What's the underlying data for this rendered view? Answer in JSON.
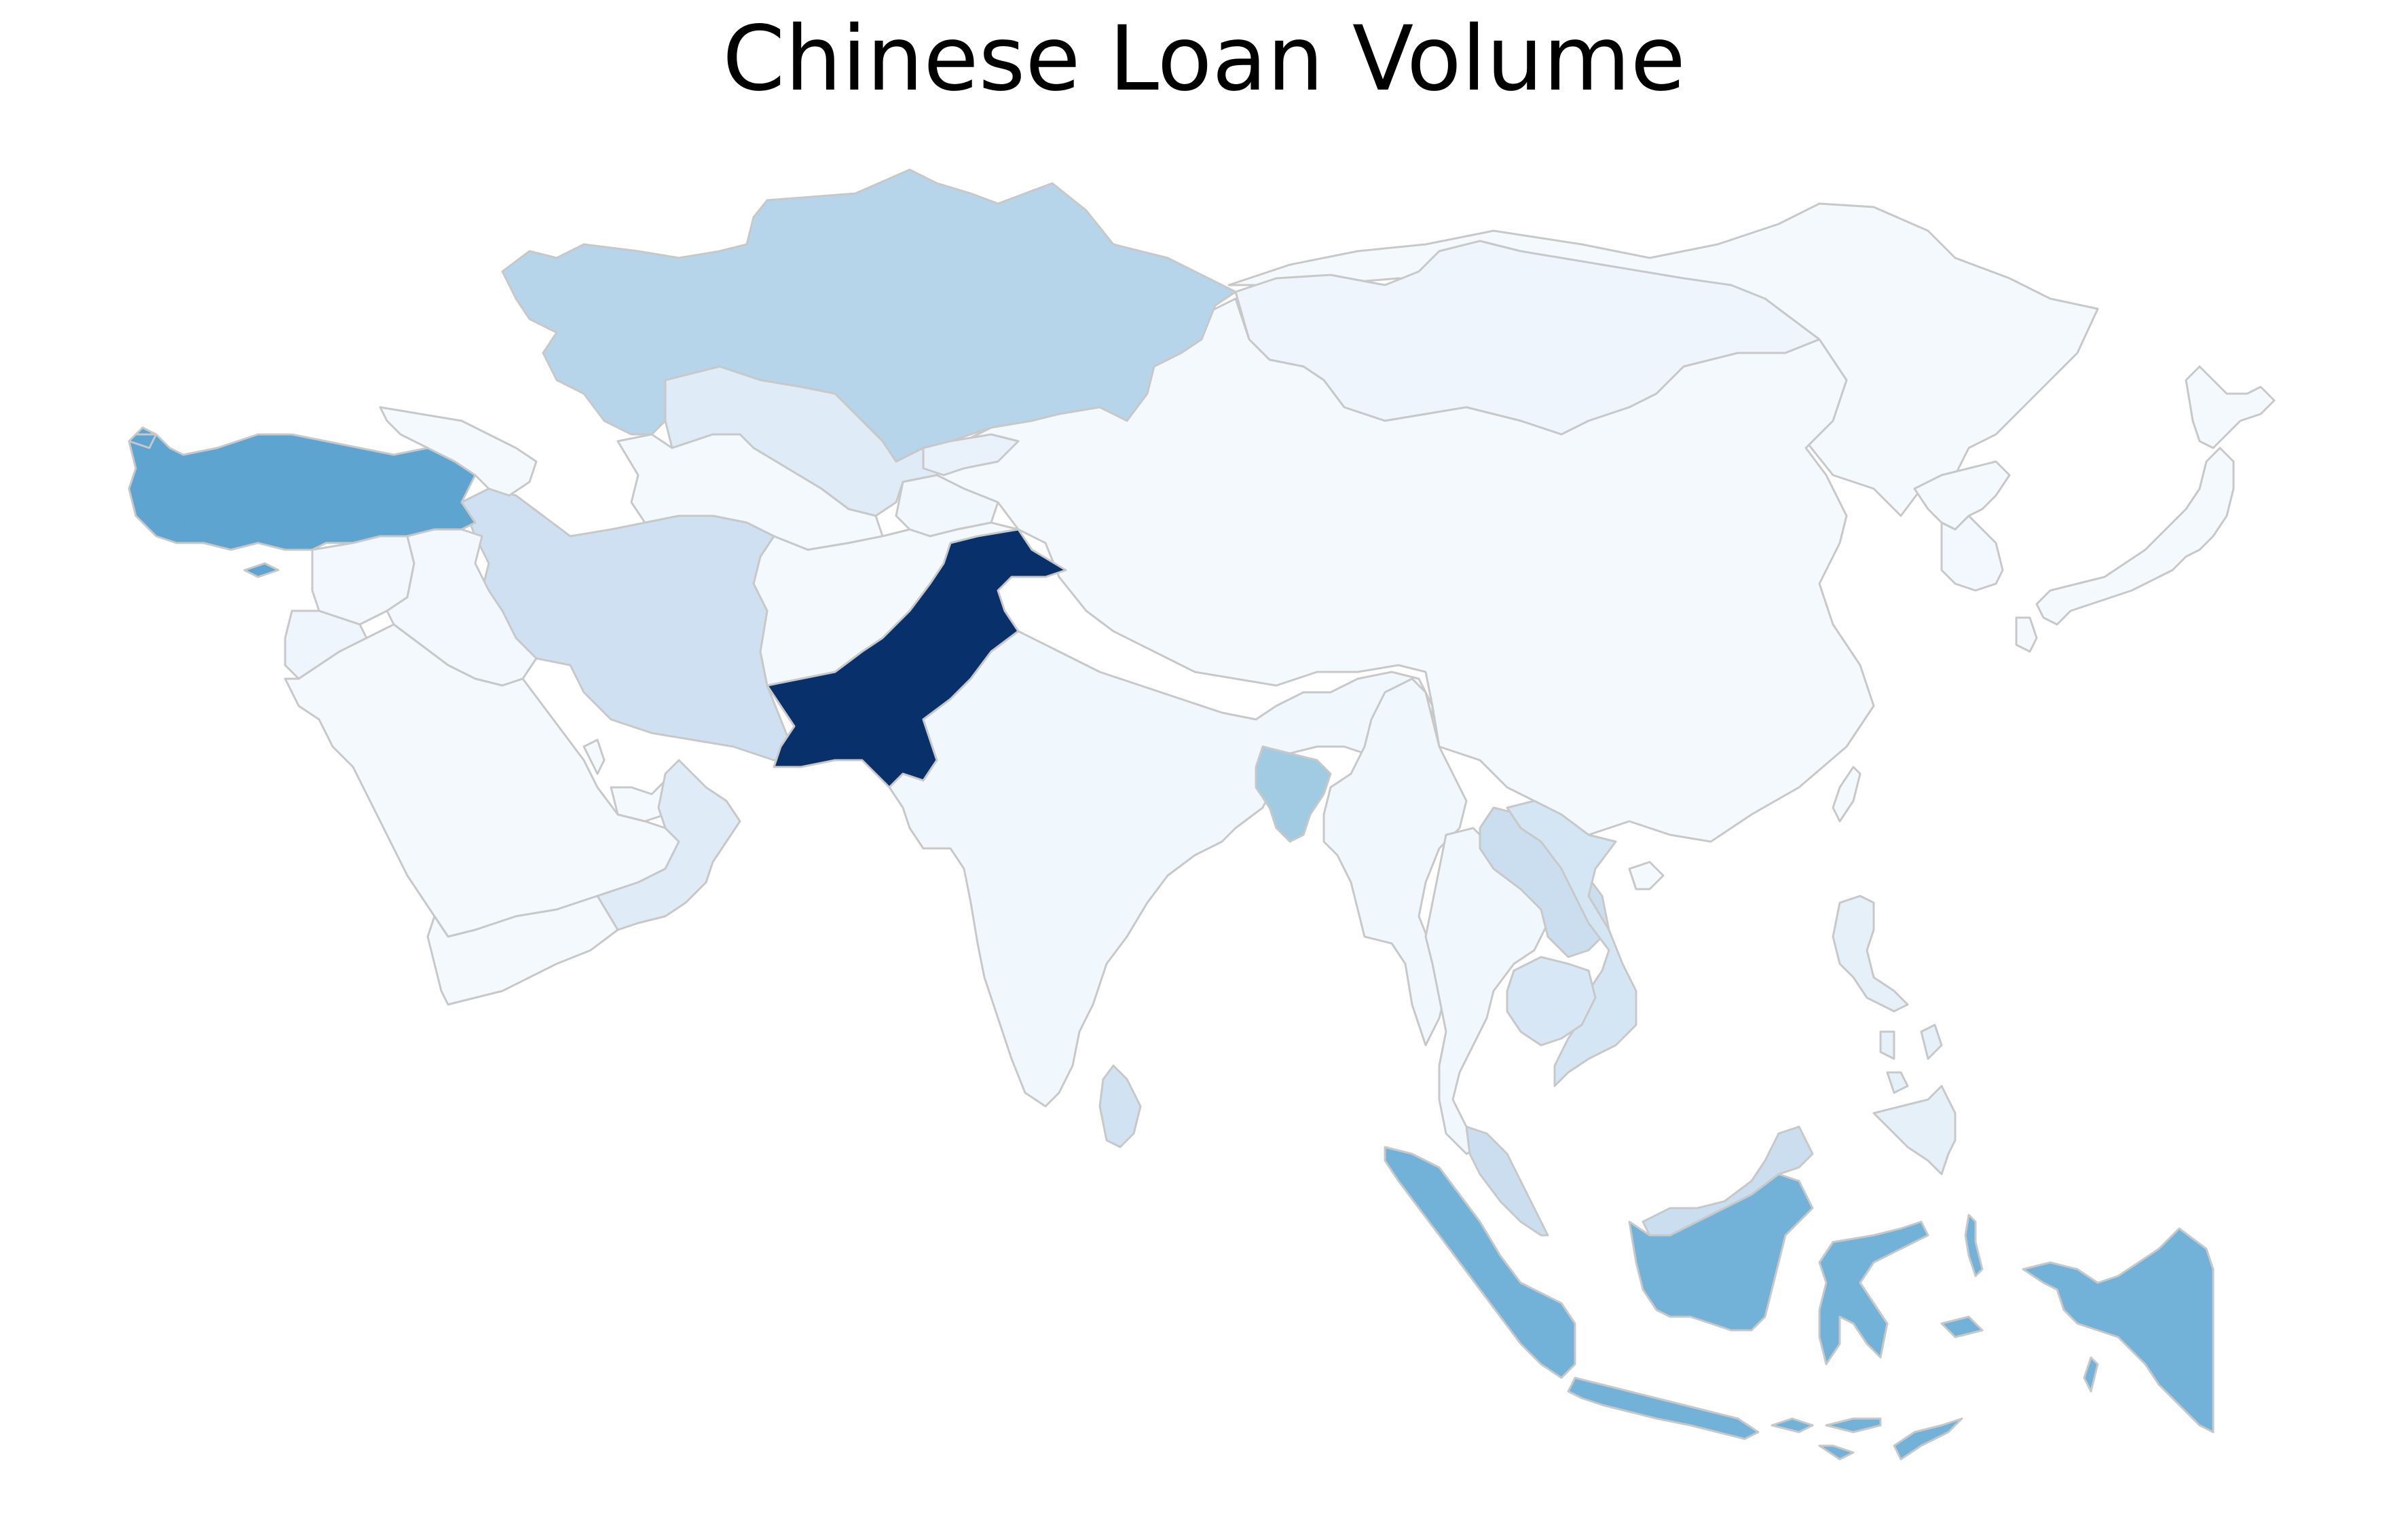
{
  "title": "Chinese Loan Volume",
  "colormap": {
    "name": "Blues",
    "stops": [
      "#f7fbff",
      "#deebf7",
      "#c6dbef",
      "#9ecae1",
      "#6baed6",
      "#4292c6",
      "#2171b5",
      "#08306b"
    ]
  },
  "border_color": "#c8c8c8",
  "regions": [
    {
      "name": "Kazakhstan",
      "level": 0.34
    },
    {
      "name": "Uzbekistan",
      "level": 0.14
    },
    {
      "name": "Turkmenistan",
      "level": 0.02
    },
    {
      "name": "Kyrgyzstan",
      "level": 0.08
    },
    {
      "name": "Tajikistan",
      "level": 0.04
    },
    {
      "name": "Mongolia",
      "level": 0.05
    },
    {
      "name": "China",
      "level": 0.02
    },
    {
      "name": "Russia",
      "level": 0.02
    },
    {
      "name": "Turkey",
      "level": 0.62
    },
    {
      "name": "Iran",
      "level": 0.24
    },
    {
      "name": "Pakistan",
      "level": 1.0
    },
    {
      "name": "Afghanistan",
      "level": 0.02
    },
    {
      "name": "Iraq",
      "level": 0.03
    },
    {
      "name": "Syria",
      "level": 0.03
    },
    {
      "name": "Jordan",
      "level": 0.05
    },
    {
      "name": "Saudi Arabia",
      "level": 0.02
    },
    {
      "name": "Yemen",
      "level": 0.02
    },
    {
      "name": "Oman",
      "level": 0.14
    },
    {
      "name": "India",
      "level": 0.04
    },
    {
      "name": "Sri Lanka",
      "level": 0.22
    },
    {
      "name": "Bangladesh",
      "level": 0.42
    },
    {
      "name": "Myanmar",
      "level": 0.04
    },
    {
      "name": "Thailand",
      "level": 0.04
    },
    {
      "name": "Laos",
      "level": 0.26
    },
    {
      "name": "Vietnam",
      "level": 0.2
    },
    {
      "name": "Cambodia",
      "level": 0.18
    },
    {
      "name": "Malaysia",
      "level": 0.26
    },
    {
      "name": "Indonesia",
      "level": 0.55
    },
    {
      "name": "Philippines",
      "level": 0.1
    },
    {
      "name": "South Korea",
      "level": 0.03
    },
    {
      "name": "North Korea",
      "level": 0.02
    },
    {
      "name": "Japan",
      "level": 0.02
    },
    {
      "name": "Caucasus",
      "level": 0.02
    }
  ]
}
